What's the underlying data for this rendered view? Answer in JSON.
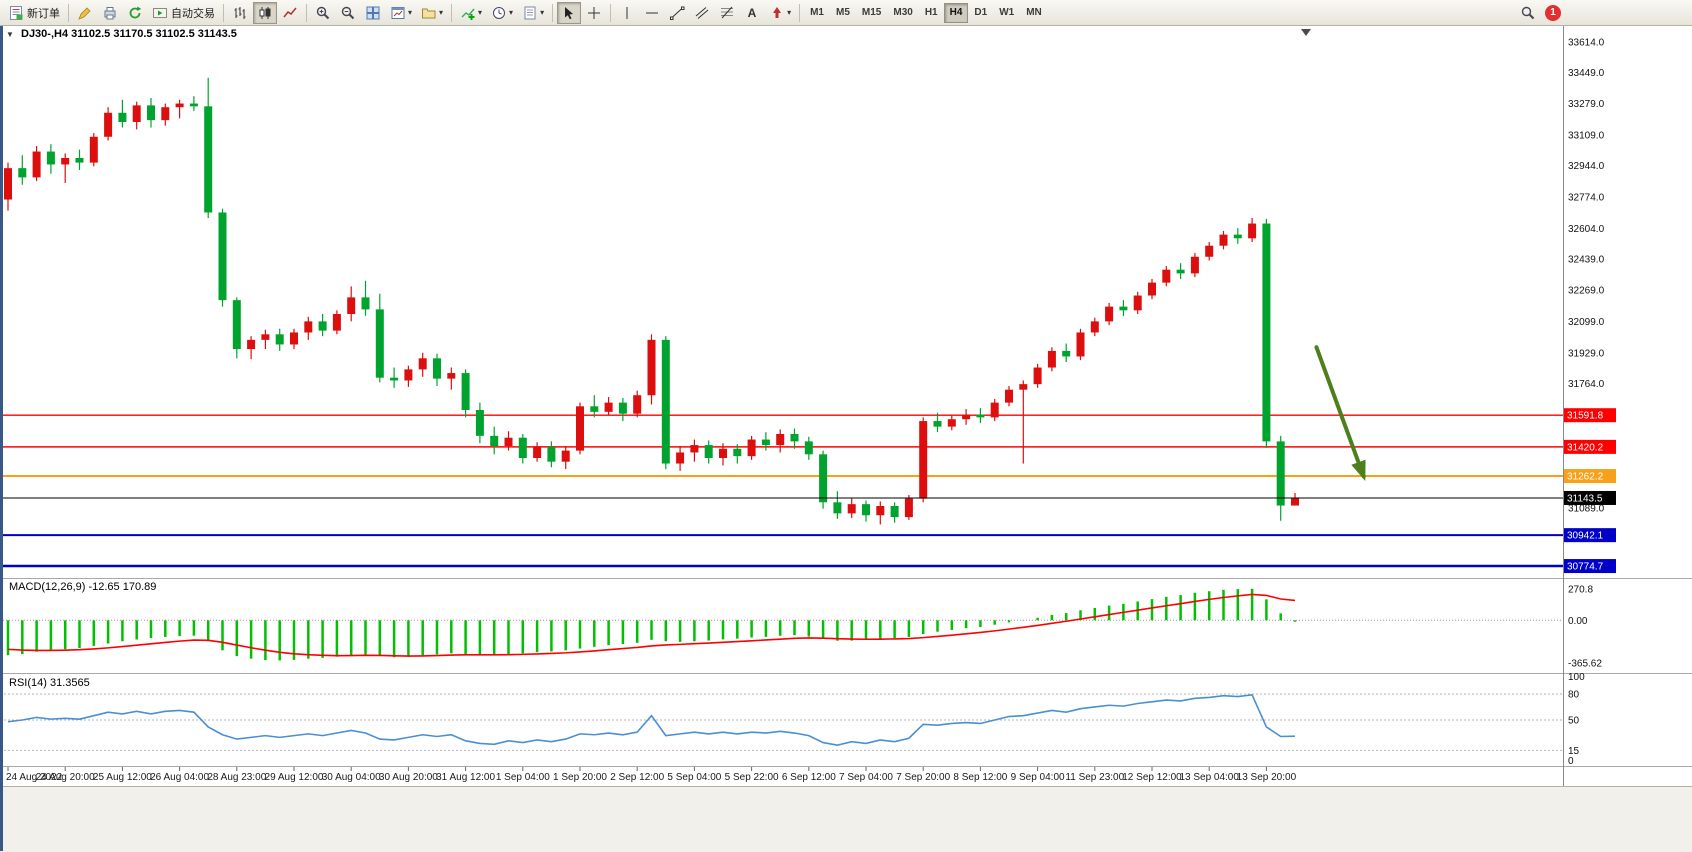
{
  "toolbar": {
    "new_order_label": "新订单",
    "auto_trading_label": "自动交易",
    "timeframes": [
      "M1",
      "M5",
      "M15",
      "M30",
      "H1",
      "H4",
      "D1",
      "W1",
      "MN"
    ],
    "active_timeframe": "H4",
    "notification_count": "1",
    "icons": {
      "dropdown": "▾",
      "text_tool": "A"
    }
  },
  "chart": {
    "title": "DJ30-,H4 31102.5 31170.5 31102.5 31143.5",
    "symbol": "DJ30-",
    "period": "H4",
    "collapse_arrow": "▼",
    "current_bar": {
      "open": 31102.5,
      "high": 31170.5,
      "low": 31102.5,
      "close": 31143.5
    }
  },
  "price_axis": {
    "tick_labels": [
      "33614.0",
      "33449.0",
      "33279.0",
      "33109.0",
      "32944.0",
      "32774.0",
      "32604.0",
      "32439.0",
      "32269.0",
      "32099.0",
      "31929.0",
      "31764.0",
      "31089.0"
    ],
    "badges": [
      {
        "label": "31591.8",
        "color": "#ff0000"
      },
      {
        "label": "31420.2",
        "color": "#ff0000"
      },
      {
        "label": "31262.2",
        "color": "#f7a11a"
      },
      {
        "label": "31143.5",
        "color": "#000000"
      },
      {
        "label": "30942.1",
        "color": "#0000c8"
      },
      {
        "label": "30774.7",
        "color": "#0000c8"
      }
    ]
  },
  "macd_panel": {
    "label": "MACD(12,26,9) -12.65 170.89",
    "axis_labels": [
      "270.8",
      "0.00",
      "-365.62"
    ]
  },
  "rsi_panel": {
    "label": "RSI(14) 31.3565",
    "axis_labels": [
      "100",
      "80",
      "50",
      "15",
      "0"
    ]
  },
  "time_axis": {
    "labels": [
      "24 Aug 2022",
      "24 Aug 20:00",
      "25 Aug 12:00",
      "26 Aug 04:00",
      "28 Aug 23:00",
      "29 Aug 12:00",
      "30 Aug 04:00",
      "30 Aug 20:00",
      "31 Aug 12:00",
      "1 Sep 04:00",
      "1 Sep 20:00",
      "2 Sep 12:00",
      "5 Sep 04:00",
      "5 Sep 22:00",
      "6 Sep 12:00",
      "7 Sep 04:00",
      "7 Sep 20:00",
      "8 Sep 12:00",
      "9 Sep 04:00",
      "11 Sep 23:00",
      "12 Sep 12:00",
      "13 Sep 04:00",
      "13 Sep 20:00"
    ],
    "label_every_n_candles": 4
  },
  "chart_data": [
    {
      "type": "candlestick",
      "title": "DJ30-,H4",
      "symbol": "DJ30-",
      "timeframe": "H4",
      "up_color": "#dc0e0e",
      "down_color": "#00a32e",
      "y_range": {
        "max": 33700,
        "min": 30710
      },
      "current_price": 31143.5,
      "levels": [
        {
          "price": 31591.8,
          "color": "#ff0000",
          "width": 1.4
        },
        {
          "price": 31420.2,
          "color": "#ff0000",
          "width": 1.4
        },
        {
          "price": 31262.2,
          "color": "#f7a11a",
          "width": 2
        },
        {
          "price": 31143.5,
          "color": "#000000",
          "width": 1
        },
        {
          "price": 30942.1,
          "color": "#0000c8",
          "width": 2
        },
        {
          "price": 30774.7,
          "color": "#0000c8",
          "width": 2.5
        }
      ],
      "candles": [
        [
          32760,
          32960,
          32700,
          32930
        ],
        [
          32930,
          33000,
          32840,
          32880
        ],
        [
          32880,
          33050,
          32860,
          33020
        ],
        [
          33020,
          33060,
          32900,
          32950
        ],
        [
          32950,
          33010,
          32850,
          32985
        ],
        [
          32985,
          33030,
          32920,
          32960
        ],
        [
          32960,
          33120,
          32940,
          33100
        ],
        [
          33100,
          33260,
          33080,
          33230
        ],
        [
          33230,
          33300,
          33150,
          33180
        ],
        [
          33180,
          33290,
          33140,
          33270
        ],
        [
          33270,
          33310,
          33150,
          33190
        ],
        [
          33190,
          33280,
          33160,
          33260
        ],
        [
          33260,
          33300,
          33200,
          33280
        ],
        [
          33280,
          33320,
          33240,
          33265
        ],
        [
          33265,
          33420,
          32660,
          32690
        ],
        [
          32690,
          32710,
          32180,
          32215
        ],
        [
          32215,
          32230,
          31900,
          31950
        ],
        [
          31950,
          32020,
          31895,
          32000
        ],
        [
          32000,
          32055,
          31950,
          32030
        ],
        [
          32030,
          32060,
          31940,
          31975
        ],
        [
          31975,
          32060,
          31950,
          32040
        ],
        [
          32040,
          32125,
          32000,
          32100
        ],
        [
          32100,
          32140,
          32020,
          32050
        ],
        [
          32050,
          32160,
          32030,
          32140
        ],
        [
          32140,
          32290,
          32100,
          32230
        ],
        [
          32230,
          32320,
          32130,
          32165
        ],
        [
          32165,
          32250,
          31770,
          31795
        ],
        [
          31795,
          31850,
          31740,
          31780
        ],
        [
          31780,
          31860,
          31745,
          31840
        ],
        [
          31840,
          31930,
          31800,
          31900
        ],
        [
          31900,
          31925,
          31750,
          31790
        ],
        [
          31790,
          31850,
          31730,
          31820
        ],
        [
          31820,
          31840,
          31580,
          31620
        ],
        [
          31620,
          31660,
          31440,
          31480
        ],
        [
          31480,
          31530,
          31380,
          31425
        ],
        [
          31425,
          31505,
          31400,
          31470
        ],
        [
          31470,
          31490,
          31330,
          31360
        ],
        [
          31360,
          31445,
          31340,
          31420
        ],
        [
          31420,
          31450,
          31310,
          31340
        ],
        [
          31340,
          31425,
          31300,
          31400
        ],
        [
          31400,
          31660,
          31380,
          31640
        ],
        [
          31640,
          31700,
          31580,
          31610
        ],
        [
          31610,
          31690,
          31590,
          31660
        ],
        [
          31660,
          31685,
          31560,
          31600
        ],
        [
          31600,
          31725,
          31580,
          31700
        ],
        [
          31700,
          32030,
          31650,
          32000
        ],
        [
          32000,
          32020,
          31300,
          31330
        ],
        [
          31330,
          31425,
          31290,
          31390
        ],
        [
          31390,
          31460,
          31340,
          31430
        ],
        [
          31430,
          31455,
          31330,
          31360
        ],
        [
          31360,
          31440,
          31320,
          31410
        ],
        [
          31410,
          31435,
          31330,
          31370
        ],
        [
          31370,
          31480,
          31350,
          31460
        ],
        [
          31460,
          31500,
          31400,
          31430
        ],
        [
          31430,
          31515,
          31390,
          31490
        ],
        [
          31490,
          31520,
          31410,
          31450
        ],
        [
          31450,
          31475,
          31350,
          31380
        ],
        [
          31380,
          31400,
          31085,
          31120
        ],
        [
          31120,
          31180,
          31030,
          31060
        ],
        [
          31060,
          31140,
          31035,
          31110
        ],
        [
          31110,
          31130,
          31015,
          31050
        ],
        [
          31050,
          31125,
          31000,
          31100
        ],
        [
          31100,
          31120,
          31010,
          31040
        ],
        [
          31040,
          31160,
          31025,
          31140
        ],
        [
          31140,
          31580,
          31120,
          31560
        ],
        [
          31560,
          31605,
          31500,
          31530
        ],
        [
          31530,
          31590,
          31510,
          31570
        ],
        [
          31570,
          31625,
          31540,
          31595
        ],
        [
          31595,
          31630,
          31550,
          31580
        ],
        [
          31580,
          31680,
          31560,
          31660
        ],
        [
          31660,
          31750,
          31640,
          31730
        ],
        [
          31730,
          31780,
          31330,
          31760
        ],
        [
          31760,
          31870,
          31740,
          31850
        ],
        [
          31850,
          31960,
          31830,
          31940
        ],
        [
          31940,
          31980,
          31880,
          31910
        ],
        [
          31910,
          32060,
          31890,
          32040
        ],
        [
          32040,
          32120,
          32020,
          32100
        ],
        [
          32100,
          32200,
          32080,
          32180
        ],
        [
          32180,
          32215,
          32130,
          32160
        ],
        [
          32160,
          32260,
          32140,
          32240
        ],
        [
          32240,
          32330,
          32220,
          32310
        ],
        [
          32310,
          32400,
          32290,
          32380
        ],
        [
          32380,
          32415,
          32330,
          32360
        ],
        [
          32360,
          32470,
          32340,
          32450
        ],
        [
          32450,
          32530,
          32430,
          32510
        ],
        [
          32510,
          32590,
          32490,
          32570
        ],
        [
          32570,
          32605,
          32520,
          32550
        ],
        [
          32550,
          32660,
          32530,
          32630
        ],
        [
          32630,
          32655,
          31415,
          31450
        ],
        [
          31450,
          31480,
          31020,
          31102.5
        ],
        [
          31102.5,
          31170.5,
          31102.5,
          31143.5
        ]
      ],
      "arrow": {
        "from_index": 91.5,
        "from_price": 31960,
        "to_index": 94.8,
        "to_price": 31260,
        "color": "#4f7f1d"
      }
    },
    {
      "type": "bar",
      "name": "MACD(12,26,9)",
      "values_label": "-12.65 170.89",
      "main_value": -12.65,
      "signal_value": 170.89,
      "y_range": {
        "max": 355,
        "min": -453
      },
      "axis_ticks": [
        270.8,
        0,
        -365.62
      ],
      "histogram_color": "#00c000",
      "signal_color": "#ff0000",
      "histogram": [
        -300,
        -290,
        -270,
        -258,
        -248,
        -238,
        -220,
        -200,
        -180,
        -165,
        -152,
        -143,
        -136,
        -132,
        -180,
        -258,
        -308,
        -330,
        -342,
        -345,
        -340,
        -330,
        -323,
        -313,
        -300,
        -294,
        -308,
        -318,
        -314,
        -300,
        -293,
        -284,
        -290,
        -296,
        -300,
        -290,
        -284,
        -274,
        -268,
        -258,
        -243,
        -228,
        -214,
        -204,
        -194,
        -168,
        -180,
        -186,
        -180,
        -174,
        -164,
        -158,
        -148,
        -143,
        -133,
        -128,
        -140,
        -160,
        -176,
        -175,
        -168,
        -158,
        -153,
        -143,
        -118,
        -98,
        -83,
        -68,
        -58,
        -38,
        -18,
        2,
        22,
        46,
        62,
        86,
        106,
        126,
        142,
        162,
        182,
        202,
        217,
        237,
        250,
        262,
        268,
        270.8,
        180,
        60,
        -12.65
      ],
      "signal": [
        -250,
        -256,
        -259,
        -259,
        -257,
        -253,
        -246,
        -237,
        -226,
        -214,
        -202,
        -190,
        -179,
        -170,
        -172,
        -189,
        -213,
        -236,
        -257,
        -275,
        -288,
        -296,
        -301,
        -304,
        -303,
        -301,
        -302,
        -305,
        -307,
        -306,
        -303,
        -299,
        -297,
        -297,
        -297,
        -296,
        -293,
        -289,
        -285,
        -280,
        -272,
        -263,
        -253,
        -243,
        -233,
        -220,
        -212,
        -207,
        -201,
        -196,
        -189,
        -183,
        -176,
        -169,
        -162,
        -155,
        -152,
        -154,
        -158,
        -161,
        -163,
        -162,
        -160,
        -157,
        -149,
        -139,
        -128,
        -116,
        -104,
        -91,
        -76,
        -60,
        -44,
        -26,
        -8,
        11,
        30,
        49,
        68,
        87,
        106,
        125,
        143,
        162,
        180,
        196,
        210,
        222,
        214,
        183,
        170.89
      ]
    },
    {
      "type": "line",
      "name": "RSI(14)",
      "value": 31.3565,
      "y_range": {
        "max": 103,
        "min": -3
      },
      "axis_ticks": [
        100,
        80,
        50,
        15,
        0
      ],
      "level_lines": [
        80,
        50,
        15
      ],
      "line_color": "#4a8fd4",
      "values": [
        48,
        50,
        53,
        51,
        52,
        51,
        55,
        59,
        57,
        60,
        57,
        60,
        61,
        59,
        42,
        33,
        28,
        30,
        32,
        30,
        32,
        34,
        32,
        35,
        38,
        35,
        28,
        27,
        30,
        33,
        31,
        33,
        26,
        23,
        22,
        26,
        24,
        27,
        25,
        28,
        34,
        33,
        35,
        33,
        36,
        55,
        32,
        34,
        36,
        34,
        36,
        34,
        36,
        35,
        37,
        35,
        32,
        24,
        21,
        25,
        23,
        27,
        25,
        29,
        45,
        44,
        46,
        47,
        46,
        50,
        54,
        55,
        58,
        61,
        59,
        63,
        65,
        67,
        66,
        69,
        71,
        73,
        72,
        75,
        76,
        78,
        77,
        79,
        42,
        31,
        31.36
      ]
    }
  ]
}
